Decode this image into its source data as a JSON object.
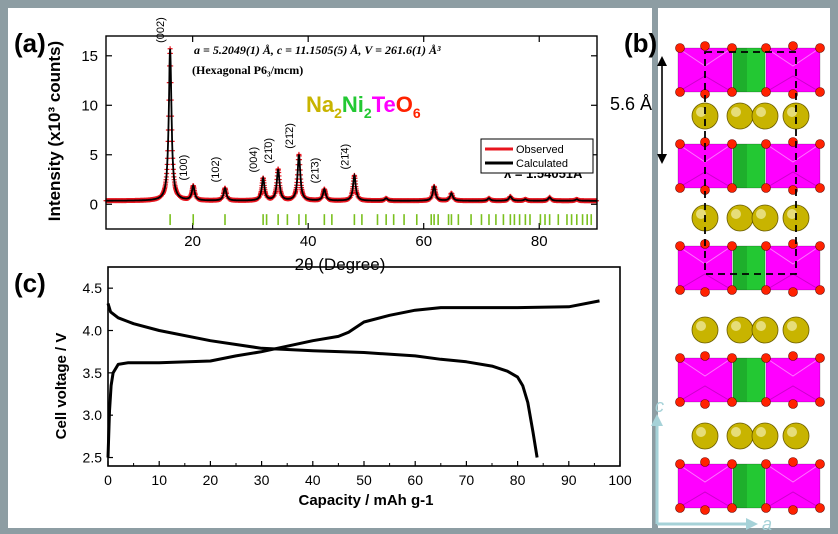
{
  "panel_labels": {
    "a": "(a)",
    "b": "(b)",
    "c": "(c)"
  },
  "colors": {
    "observed": "#e8141e",
    "calculated": "#000000",
    "bragg_ticks": "#7ac01e",
    "na_color": "#c8b400",
    "ni_color": "#23c833",
    "te_color": "#ff00ff",
    "o_color": "#ff2200",
    "axis_arrow": "#a6d2d8"
  },
  "panel_a": {
    "lattice_line": "a = 5.2049(1) Å, c = 11.1505(5) Å, V = 261.6(1) Å³",
    "space_group_line": "(Hexagonal P6₃/mcm)",
    "formula": {
      "na": "Na",
      "na_sub": "2",
      "ni": "Ni",
      "ni_sub": "2",
      "te": "Te",
      "o": "O",
      "o_sub": "6"
    },
    "wavelength": "λ = 1.54051Å"
  },
  "panel_b": {
    "spacing_label": "5.6 Å",
    "axis_c": "c",
    "axis_a": "a"
  },
  "chart_data": [
    {
      "id": "xrd",
      "type": "line",
      "title": "",
      "xlabel": "2θ (Degree)",
      "ylabel": "Intensity (x10³ counts)",
      "xlim": [
        5,
        90
      ],
      "ylim": [
        -2.5,
        17
      ],
      "xticks": [
        20,
        40,
        60,
        80
      ],
      "yticks": [
        0,
        5,
        10,
        15
      ],
      "legend": {
        "placement": "right",
        "entries": [
          "Observed",
          "Calculated"
        ]
      },
      "series": [
        {
          "name": "Observed",
          "style": "red crosses",
          "peaks": [
            [
              16.1,
              15.7
            ],
            [
              20.1,
              1.8
            ],
            [
              25.6,
              1.6
            ],
            [
              32.2,
              2.6
            ],
            [
              34.8,
              3.5
            ],
            [
              38.4,
              5.0
            ],
            [
              42.8,
              1.5
            ],
            [
              48.0,
              2.9
            ],
            [
              53.5,
              0.6
            ],
            [
              61.8,
              1.8
            ],
            [
              64.8,
              1.1
            ],
            [
              71.3,
              0.6
            ],
            [
              75.0,
              0.8
            ],
            [
              77.6,
              0.5
            ],
            [
              81.8,
              0.7
            ],
            [
              86.5,
              0.5
            ]
          ],
          "baseline": 0.35
        },
        {
          "name": "Calculated",
          "style": "black line",
          "peaks": [
            [
              16.1,
              15.7
            ],
            [
              20.1,
              1.8
            ],
            [
              25.6,
              1.6
            ],
            [
              32.2,
              2.6
            ],
            [
              34.8,
              3.5
            ],
            [
              38.4,
              5.0
            ],
            [
              42.8,
              1.5
            ],
            [
              48.0,
              2.9
            ],
            [
              53.5,
              0.6
            ],
            [
              61.8,
              1.8
            ],
            [
              64.8,
              1.1
            ],
            [
              71.3,
              0.6
            ],
            [
              75.0,
              0.8
            ],
            [
              77.6,
              0.5
            ],
            [
              81.8,
              0.7
            ],
            [
              86.5,
              0.5
            ]
          ],
          "baseline": 0.35
        }
      ],
      "peak_labels": [
        {
          "x": 16.1,
          "y": 15.7,
          "label": "(002)"
        },
        {
          "x": 20.1,
          "y": 1.8,
          "label": "(100)"
        },
        {
          "x": 25.6,
          "y": 1.6,
          "label": "(102)"
        },
        {
          "x": 32.2,
          "y": 2.6,
          "label": "(004)"
        },
        {
          "x": 34.8,
          "y": 3.5,
          "label": "(21̄0)"
        },
        {
          "x": 38.4,
          "y": 5.0,
          "label": "(21̄2)"
        },
        {
          "x": 42.8,
          "y": 1.5,
          "label": "(21̄3)"
        },
        {
          "x": 48.0,
          "y": 2.9,
          "label": "(21̄4)"
        }
      ],
      "bragg_positions": [
        16.1,
        20.1,
        25.6,
        32.2,
        32.8,
        34.8,
        36.4,
        38.4,
        39.6,
        42.8,
        44.1,
        48.0,
        49.3,
        52.0,
        53.5,
        54.8,
        56.6,
        58.8,
        61.3,
        61.8,
        62.5,
        64.3,
        64.8,
        66.0,
        68.2,
        70.0,
        71.3,
        72.5,
        73.8,
        75.0,
        75.7,
        76.6,
        77.6,
        78.4,
        80.2,
        81.0,
        81.8,
        83.3,
        84.8,
        85.6,
        86.5,
        87.5,
        88.3,
        89.0
      ]
    },
    {
      "id": "electrochem",
      "type": "line",
      "title": "",
      "xlabel": "Capacity / mAh g-1",
      "ylabel": "Cell voltage / V",
      "xlim": [
        0,
        100
      ],
      "ylim": [
        2.4,
        4.75
      ],
      "xticks": [
        0,
        10,
        20,
        30,
        40,
        50,
        60,
        70,
        80,
        90,
        100
      ],
      "yticks": [
        2.5,
        3.0,
        3.5,
        4.0,
        4.5
      ],
      "series": [
        {
          "x": [
            0,
            0.3,
            0.6,
            1,
            2,
            4,
            10,
            20,
            25,
            30,
            40,
            45,
            47,
            50,
            55,
            60,
            65,
            70,
            80,
            90,
            96
          ],
          "y": [
            2.5,
            3.05,
            3.35,
            3.5,
            3.6,
            3.62,
            3.62,
            3.64,
            3.7,
            3.75,
            3.88,
            3.93,
            3.98,
            4.1,
            4.18,
            4.24,
            4.27,
            4.27,
            4.27,
            4.28,
            4.35
          ]
        },
        {
          "x": [
            0,
            0.5,
            2,
            5,
            10,
            20,
            30,
            40,
            50,
            60,
            65,
            70,
            75,
            78,
            80,
            81,
            82,
            83,
            83.8
          ],
          "y": [
            4.32,
            4.22,
            4.15,
            4.08,
            4.0,
            3.88,
            3.79,
            3.76,
            3.74,
            3.7,
            3.66,
            3.63,
            3.58,
            3.52,
            3.45,
            3.35,
            3.15,
            2.8,
            2.5
          ]
        }
      ]
    }
  ]
}
